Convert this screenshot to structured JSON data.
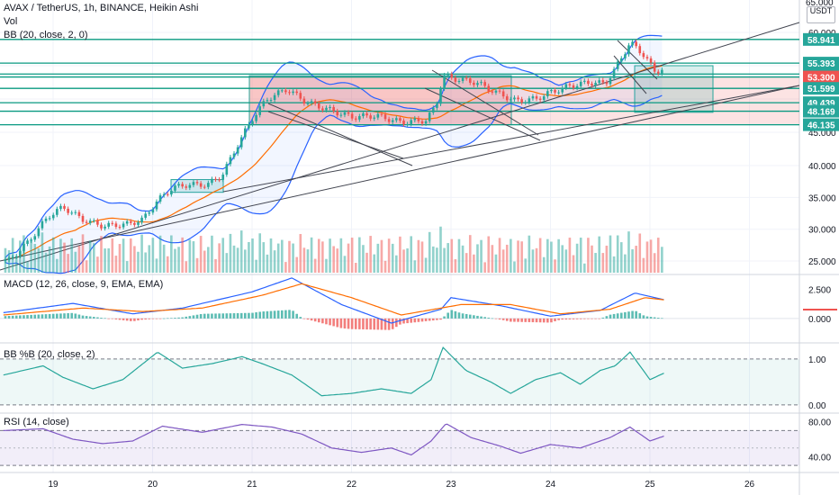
{
  "header": {
    "title": "AVAX / TetherUS, 1h, BINANCE, Heikin Ashi",
    "vol_label": "Vol",
    "bb_label": "BB (20, close, 2, 0)",
    "unit_top": "65.000",
    "unit": "USDT"
  },
  "panes": {
    "macd_label": "MACD (12, 26, close, 9, EMA, EMA)",
    "bbpb_label": "BB %B (20, close, 2)",
    "rsi_label": "RSI (14, close)"
  },
  "colors": {
    "up": "#26a69a",
    "down": "#ef5350",
    "bb": "#2962ff",
    "basis": "#ff6d00",
    "level": "#089981",
    "band_fill": "#2962ff",
    "rsi": "#7e57c2",
    "macd": "#2962ff",
    "signal": "#ff6d00"
  },
  "chart_data": [
    {
      "type": "candlestick",
      "title": "AVAX / TetherUS, 1h, BINANCE, Heikin Ashi",
      "x_tick_labels": [
        "19",
        "20",
        "21",
        "22",
        "23",
        "24",
        "25",
        "26"
      ],
      "y_tick_labels": [
        "25.000",
        "30.000",
        "35.000",
        "40.000",
        "45.000",
        "60.000"
      ],
      "ylim": [
        23.5,
        65
      ],
      "horizontal_levels": [
        {
          "value": 58.941,
          "label": "58.941"
        },
        {
          "value": 55.393,
          "label": "55.393"
        },
        {
          "value": 53.747,
          "label": "53.747"
        },
        {
          "value": 53.3,
          "label": "53.300",
          "price_marker": true
        },
        {
          "value": 51.599,
          "label": "51.599"
        },
        {
          "value": 49.439,
          "label": "49.439"
        },
        {
          "value": 48.169,
          "label": "48.169"
        },
        {
          "value": 46.135,
          "label": "46.135"
        }
      ],
      "close_path": [
        [
          18.55,
          25.0
        ],
        [
          18.75,
          28.0
        ],
        [
          18.95,
          32.0
        ],
        [
          19.1,
          33.5
        ],
        [
          19.3,
          31.5
        ],
        [
          19.5,
          30.5
        ],
        [
          19.75,
          30.8
        ],
        [
          19.9,
          31.5
        ],
        [
          20.05,
          34.5
        ],
        [
          20.2,
          36.5
        ],
        [
          20.35,
          37.0
        ],
        [
          20.55,
          37.0
        ],
        [
          20.7,
          38.5
        ],
        [
          20.85,
          43.0
        ],
        [
          21.0,
          47.0
        ],
        [
          21.15,
          50.0
        ],
        [
          21.35,
          51.5
        ],
        [
          21.55,
          49.5
        ],
        [
          21.75,
          48.5
        ],
        [
          22.0,
          47.3
        ],
        [
          22.25,
          47.5
        ],
        [
          22.5,
          46.5
        ],
        [
          22.75,
          46.8
        ],
        [
          22.85,
          49.0
        ],
        [
          22.92,
          53.5
        ],
        [
          23.05,
          53.0
        ],
        [
          23.25,
          52.5
        ],
        [
          23.45,
          51.0
        ],
        [
          23.65,
          49.7
        ],
        [
          23.85,
          50.0
        ],
        [
          24.0,
          51.0
        ],
        [
          24.2,
          52.0
        ],
        [
          24.4,
          52.5
        ],
        [
          24.55,
          52.3
        ],
        [
          24.65,
          54.5
        ],
        [
          24.8,
          58.5
        ],
        [
          24.95,
          56.5
        ],
        [
          25.05,
          54.0
        ],
        [
          25.15,
          54.8
        ]
      ],
      "volume": "histogram (values not labeled)"
    },
    {
      "type": "line",
      "title": "MACD (12, 26, close, 9, EMA, EMA)",
      "y_tick_labels": [
        "2.500",
        "0.000"
      ],
      "ylim": [
        -1.8,
        3.8
      ],
      "macd": [
        [
          18.5,
          0.5
        ],
        [
          19.2,
          1.3
        ],
        [
          19.8,
          0.4
        ],
        [
          20.3,
          0.9
        ],
        [
          21.0,
          2.3
        ],
        [
          21.4,
          3.5
        ],
        [
          21.9,
          1.2
        ],
        [
          22.4,
          -0.4
        ],
        [
          22.9,
          0.8
        ],
        [
          23.0,
          1.8
        ],
        [
          23.5,
          1.1
        ],
        [
          24.0,
          0.2
        ],
        [
          24.5,
          0.7
        ],
        [
          24.85,
          2.2
        ],
        [
          25.15,
          1.6
        ]
      ],
      "signal": [
        [
          18.5,
          0.3
        ],
        [
          19.3,
          0.9
        ],
        [
          19.9,
          0.6
        ],
        [
          20.5,
          0.9
        ],
        [
          21.1,
          2.0
        ],
        [
          21.5,
          3.0
        ],
        [
          22.0,
          1.8
        ],
        [
          22.5,
          0.3
        ],
        [
          23.1,
          1.2
        ],
        [
          23.6,
          1.2
        ],
        [
          24.1,
          0.4
        ],
        [
          24.6,
          0.8
        ],
        [
          24.95,
          1.8
        ],
        [
          25.15,
          1.6
        ]
      ]
    },
    {
      "type": "line",
      "title": "BB %B (20, close, 2)",
      "y_tick_labels": [
        "1.00",
        "0.00"
      ],
      "ylim": [
        -0.1,
        1.35
      ],
      "points": [
        [
          18.5,
          0.65
        ],
        [
          18.9,
          0.85
        ],
        [
          19.1,
          0.6
        ],
        [
          19.4,
          0.35
        ],
        [
          19.7,
          0.55
        ],
        [
          20.05,
          1.15
        ],
        [
          20.3,
          0.8
        ],
        [
          20.6,
          0.9
        ],
        [
          20.9,
          1.05
        ],
        [
          21.1,
          0.9
        ],
        [
          21.4,
          0.65
        ],
        [
          21.7,
          0.2
        ],
        [
          22.0,
          0.25
        ],
        [
          22.3,
          0.35
        ],
        [
          22.6,
          0.25
        ],
        [
          22.8,
          0.55
        ],
        [
          22.92,
          1.25
        ],
        [
          23.15,
          0.75
        ],
        [
          23.4,
          0.5
        ],
        [
          23.6,
          0.25
        ],
        [
          23.85,
          0.55
        ],
        [
          24.1,
          0.7
        ],
        [
          24.3,
          0.45
        ],
        [
          24.5,
          0.75
        ],
        [
          24.65,
          0.85
        ],
        [
          24.8,
          1.15
        ],
        [
          25.0,
          0.55
        ],
        [
          25.15,
          0.7
        ]
      ]
    },
    {
      "type": "line",
      "title": "RSI (14, close)",
      "y_tick_labels": [
        "80.00",
        "40.00"
      ],
      "ylim": [
        25,
        90
      ],
      "bands": [
        70,
        30
      ],
      "points": [
        [
          18.5,
          70
        ],
        [
          18.9,
          72
        ],
        [
          19.2,
          60
        ],
        [
          19.5,
          55
        ],
        [
          19.8,
          58
        ],
        [
          20.1,
          75
        ],
        [
          20.5,
          68
        ],
        [
          20.9,
          77
        ],
        [
          21.2,
          74
        ],
        [
          21.5,
          66
        ],
        [
          21.8,
          50
        ],
        [
          22.1,
          45
        ],
        [
          22.4,
          50
        ],
        [
          22.6,
          42
        ],
        [
          22.8,
          58
        ],
        [
          22.95,
          78
        ],
        [
          23.2,
          62
        ],
        [
          23.5,
          52
        ],
        [
          23.7,
          44
        ],
        [
          24.0,
          54
        ],
        [
          24.3,
          50
        ],
        [
          24.6,
          62
        ],
        [
          24.8,
          74
        ],
        [
          25.0,
          58
        ],
        [
          25.15,
          64
        ]
      ]
    }
  ]
}
